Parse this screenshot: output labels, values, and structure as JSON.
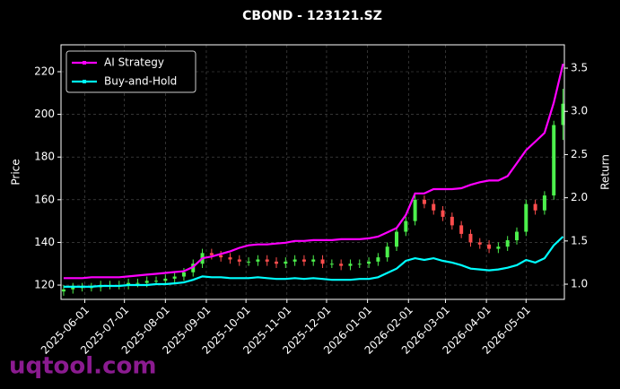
{
  "chart_data": {
    "type": "candlestick",
    "title": "CBOND - 123121.SZ",
    "y_label": "Price",
    "y2_label": "Return",
    "watermark": "uqtool.com",
    "legend": "upper left",
    "grid": true,
    "up_color": "#4cf04c",
    "down_color": "#ff4d4d",
    "x": [
      "2025-05-16",
      "2025-05-23",
      "2025-05-30",
      "2025-06-06",
      "2025-06-13",
      "2025-06-20",
      "2025-06-27",
      "2025-07-04",
      "2025-07-11",
      "2025-07-18",
      "2025-07-25",
      "2025-08-01",
      "2025-08-08",
      "2025-08-15",
      "2025-08-22",
      "2025-08-29",
      "2025-09-05",
      "2025-09-12",
      "2025-09-19",
      "2025-09-26",
      "2025-10-03",
      "2025-10-10",
      "2025-10-17",
      "2025-10-24",
      "2025-10-31",
      "2025-11-07",
      "2025-11-14",
      "2025-11-21",
      "2025-11-28",
      "2025-12-05",
      "2025-12-12",
      "2025-12-19",
      "2025-12-26",
      "2026-01-02",
      "2026-01-09",
      "2026-01-16",
      "2026-01-23",
      "2026-01-30",
      "2026-02-06",
      "2026-02-13",
      "2026-02-20",
      "2026-02-27",
      "2026-03-06",
      "2026-03-13",
      "2026-03-20",
      "2026-03-27",
      "2026-04-03",
      "2026-04-10",
      "2026-04-17",
      "2026-04-24",
      "2026-05-01",
      "2026-05-08",
      "2026-05-15",
      "2026-05-22",
      "2026-05-29"
    ],
    "open": [
      117,
      118,
      119,
      119,
      119,
      120,
      120,
      120,
      121,
      121,
      122,
      122,
      123,
      124,
      126,
      130,
      135,
      134,
      133,
      132,
      131,
      131,
      132,
      131,
      130,
      131,
      132,
      131,
      132,
      130,
      130,
      129,
      130,
      130,
      131,
      133,
      138,
      145,
      150,
      160,
      158,
      155,
      152,
      148,
      144,
      140,
      139,
      137,
      138,
      141,
      145,
      158,
      155,
      162,
      195
    ],
    "high": [
      120,
      121,
      121,
      121,
      122,
      122,
      122,
      123,
      123,
      124,
      124,
      125,
      126,
      128,
      132,
      137,
      137,
      136,
      135,
      134,
      133,
      134,
      134,
      133,
      133,
      134,
      134,
      134,
      134,
      132,
      132,
      132,
      132,
      133,
      135,
      140,
      147,
      152,
      162,
      162,
      160,
      157,
      154,
      150,
      146,
      142,
      141,
      140,
      143,
      147,
      160,
      160,
      164,
      197,
      212
    ],
    "low": [
      115,
      116,
      117,
      117,
      117,
      118,
      118,
      118,
      119,
      119,
      120,
      120,
      121,
      122,
      124,
      128,
      132,
      131,
      130,
      129,
      129,
      129,
      129,
      128,
      128,
      129,
      129,
      129,
      128,
      128,
      127,
      127,
      128,
      128,
      129,
      131,
      136,
      143,
      148,
      156,
      153,
      150,
      146,
      142,
      138,
      137,
      135,
      135,
      136,
      139,
      143,
      153,
      153,
      160,
      188
    ],
    "close": [
      118,
      119,
      119,
      119,
      120,
      120,
      120,
      121,
      121,
      122,
      122,
      123,
      124,
      126,
      130,
      135,
      134,
      133,
      132,
      131,
      131,
      132,
      131,
      130,
      131,
      132,
      131,
      132,
      130,
      130,
      129,
      130,
      130,
      131,
      133,
      138,
      145,
      150,
      160,
      158,
      155,
      152,
      148,
      144,
      140,
      139,
      137,
      138,
      141,
      145,
      158,
      155,
      162,
      195,
      205
    ],
    "series": [
      {
        "name": "AI Strategy",
        "color": "#ff00ff",
        "axis": "y2",
        "values": [
          1.07,
          1.07,
          1.07,
          1.08,
          1.08,
          1.08,
          1.08,
          1.09,
          1.1,
          1.11,
          1.12,
          1.13,
          1.14,
          1.15,
          1.2,
          1.3,
          1.32,
          1.35,
          1.38,
          1.42,
          1.45,
          1.46,
          1.46,
          1.47,
          1.48,
          1.5,
          1.5,
          1.51,
          1.51,
          1.51,
          1.52,
          1.52,
          1.52,
          1.53,
          1.55,
          1.6,
          1.65,
          1.8,
          2.05,
          2.05,
          2.1,
          2.1,
          2.1,
          2.11,
          2.15,
          2.18,
          2.2,
          2.2,
          2.25,
          2.4,
          2.55,
          2.65,
          2.75,
          3.1,
          3.55
        ]
      },
      {
        "name": "Buy-and-Hold",
        "color": "#00ffff",
        "axis": "y2",
        "values": [
          0.97,
          0.97,
          0.97,
          0.97,
          0.98,
          0.98,
          0.98,
          0.99,
          0.99,
          0.99,
          1.0,
          1.0,
          1.01,
          1.02,
          1.05,
          1.09,
          1.08,
          1.08,
          1.07,
          1.07,
          1.07,
          1.08,
          1.07,
          1.06,
          1.06,
          1.07,
          1.06,
          1.07,
          1.06,
          1.05,
          1.05,
          1.05,
          1.06,
          1.06,
          1.08,
          1.13,
          1.18,
          1.27,
          1.3,
          1.28,
          1.3,
          1.27,
          1.25,
          1.22,
          1.18,
          1.17,
          1.16,
          1.17,
          1.19,
          1.22,
          1.28,
          1.25,
          1.3,
          1.45,
          1.55
        ]
      }
    ],
    "xlim": [
      "2025-05-14",
      "2026-05-30"
    ],
    "xticks": [
      "2025-06-01",
      "2025-07-01",
      "2025-08-01",
      "2025-09-01",
      "2025-10-01",
      "2025-11-01",
      "2025-12-01",
      "2026-01-01",
      "2026-02-01",
      "2026-03-01",
      "2026-04-01",
      "2026-05-01"
    ],
    "ylim": [
      113.3,
      232.6
    ],
    "yticks": [
      120,
      140,
      160,
      180,
      200,
      220
    ],
    "y2lim": [
      0.824,
      3.77
    ],
    "y2ticks": [
      {
        "value": 1,
        "label": "1.0"
      },
      {
        "value": 1.5,
        "label": "1.5"
      },
      {
        "value": 2,
        "label": "2.0"
      },
      {
        "value": 2.5,
        "label": "2.5"
      },
      {
        "value": 3,
        "label": "3.0"
      },
      {
        "value": 3.5,
        "label": "3.5"
      }
    ]
  }
}
